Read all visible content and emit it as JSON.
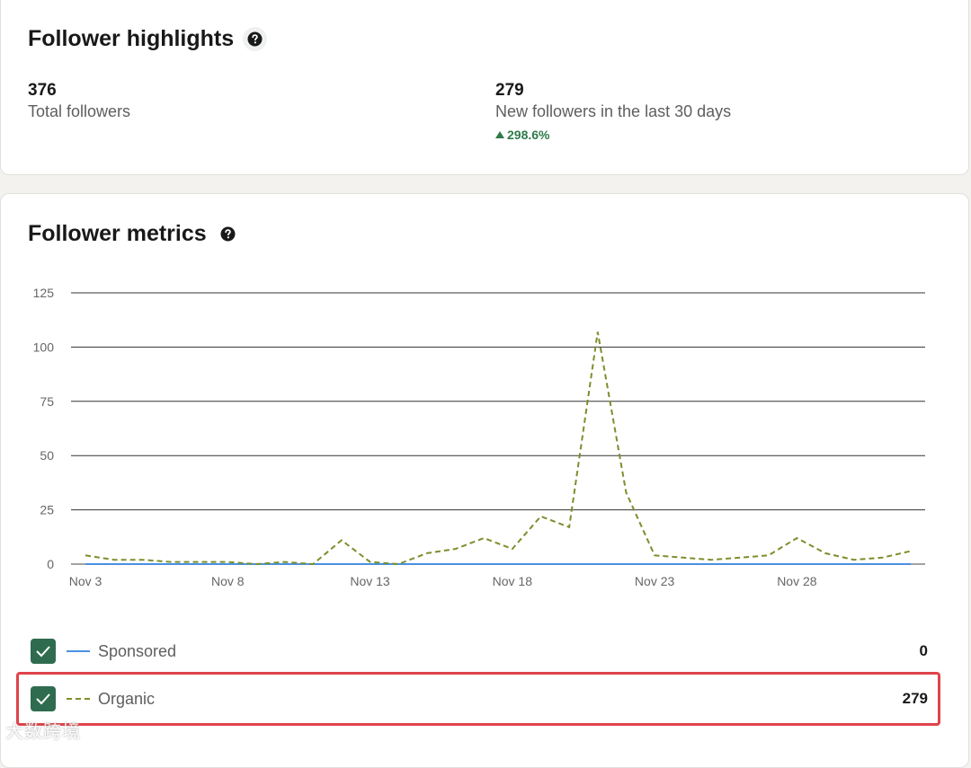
{
  "highlights": {
    "title": "Follower highlights",
    "total": {
      "value": "376",
      "label": "Total followers"
    },
    "new": {
      "value": "279",
      "label": "New followers in the last 30 days",
      "change": "298.6%"
    }
  },
  "metrics": {
    "title": "Follower metrics"
  },
  "legend": [
    {
      "label": "Sponsored",
      "value": "0",
      "color": "#4a90e2",
      "style": "solid"
    },
    {
      "label": "Organic",
      "value": "279",
      "color": "#7b8f2c",
      "style": "dashed"
    }
  ],
  "watermark": "大数跨境",
  "colors": {
    "checkbox": "#2f6c4f",
    "positive": "#2f7a4b",
    "highlight": "#e0434b"
  },
  "chart_data": {
    "type": "line",
    "x": [
      "Nov 3",
      "Nov 4",
      "Nov 5",
      "Nov 6",
      "Nov 7",
      "Nov 8",
      "Nov 9",
      "Nov 10",
      "Nov 11",
      "Nov 12",
      "Nov 13",
      "Nov 14",
      "Nov 15",
      "Nov 16",
      "Nov 17",
      "Nov 18",
      "Nov 19",
      "Nov 20",
      "Nov 21",
      "Nov 22",
      "Nov 23",
      "Nov 24",
      "Nov 25",
      "Nov 26",
      "Nov 27",
      "Nov 28",
      "Nov 29",
      "Nov 30",
      "Dec 1",
      "Dec 2"
    ],
    "xticks": [
      "Nov 3",
      "Nov 8",
      "Nov 13",
      "Nov 18",
      "Nov 23",
      "Nov 28"
    ],
    "yticks": [
      0,
      25,
      50,
      75,
      100,
      125
    ],
    "ylim": [
      0,
      125
    ],
    "grid": true,
    "series": [
      {
        "name": "Sponsored",
        "values": [
          0,
          0,
          0,
          0,
          0,
          0,
          0,
          0,
          0,
          0,
          0,
          0,
          0,
          0,
          0,
          0,
          0,
          0,
          0,
          0,
          0,
          0,
          0,
          0,
          0,
          0,
          0,
          0,
          0,
          0
        ]
      },
      {
        "name": "Organic",
        "values": [
          4,
          2,
          2,
          1,
          1,
          1,
          0,
          1,
          0,
          11,
          1,
          0,
          5,
          7,
          12,
          7,
          22,
          17,
          107,
          33,
          4,
          3,
          2,
          3,
          4,
          12,
          5,
          2,
          3,
          6
        ]
      }
    ]
  }
}
